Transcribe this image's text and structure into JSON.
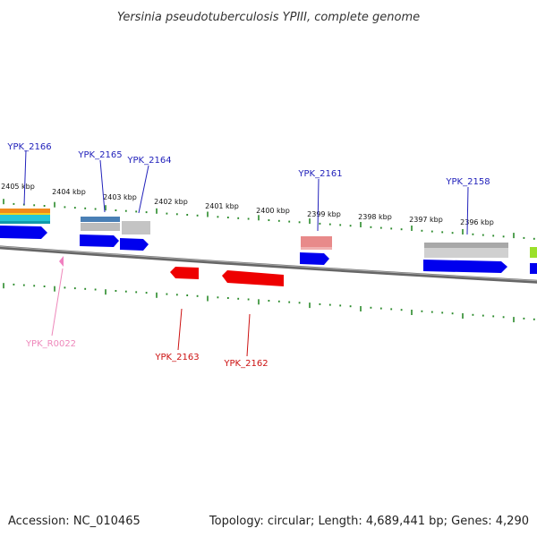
{
  "title": "Yersinia pseudotuberculosis YPIII, complete genome",
  "footer": {
    "accession": "Accession: NC_010465",
    "summary": "Topology: circular; Length: 4,689,441 bp; Genes: 4,290"
  },
  "colors": {
    "backbone": "#888888",
    "tick": "#2a8a2a",
    "label_forward": "#2222bb",
    "label_reverse": "#cc1111",
    "label_rna": "#ee88bb",
    "cds": "#0000ee",
    "cds_reverse": "#ee0000"
  },
  "ruler": {
    "labels": [
      "2405 kbp",
      "2404 kbp",
      "2403 kbp",
      "2402 kbp",
      "2401 kbp",
      "2400 kbp",
      "2399 kbp",
      "2398 kbp",
      "2397 kbp",
      "2396 kbp"
    ]
  },
  "gene_labels": [
    {
      "text": "YPK_2166",
      "strand": "forward"
    },
    {
      "text": "YPK_2165",
      "strand": "forward"
    },
    {
      "text": "YPK_2164",
      "strand": "forward"
    },
    {
      "text": "YPK_2161",
      "strand": "forward"
    },
    {
      "text": "YPK_2158",
      "strand": "forward"
    },
    {
      "text": "YPK_R0022",
      "strand": "rna"
    },
    {
      "text": "YPK_2163",
      "strand": "reverse"
    },
    {
      "text": "YPK_2162",
      "strand": "reverse"
    }
  ]
}
